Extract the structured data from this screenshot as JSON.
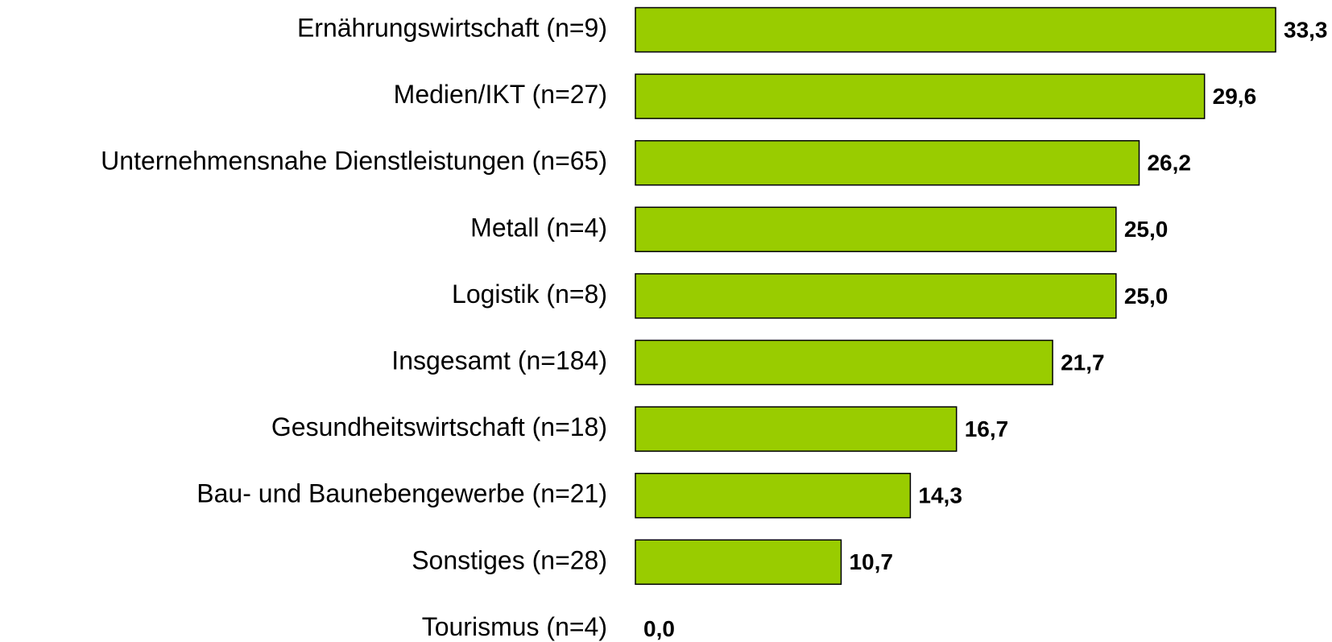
{
  "chart_data": {
    "type": "bar",
    "orientation": "horizontal",
    "color": "#99cc00",
    "categories": [
      "Ernährungswirtschaft (n=9)",
      "Medien/IKT (n=27)",
      "Unternehmensnahe Dienstleistungen (n=65)",
      "Metall (n=4)",
      "Logistik (n=8)",
      "Insgesamt (n=184)",
      "Gesundheitswirtschaft (n=18)",
      "Bau- und Baunebengewerbe (n=21)",
      "Sonstiges (n=28)",
      "Tourismus (n=4)"
    ],
    "values": [
      33.3,
      29.6,
      26.2,
      25.0,
      25.0,
      21.7,
      16.7,
      14.3,
      10.7,
      0.0
    ],
    "value_labels": [
      "33,3",
      "29,6",
      "26,2",
      "25,0",
      "25,0",
      "21,7",
      "16,7",
      "14,3",
      "10,7",
      "0,0"
    ]
  }
}
